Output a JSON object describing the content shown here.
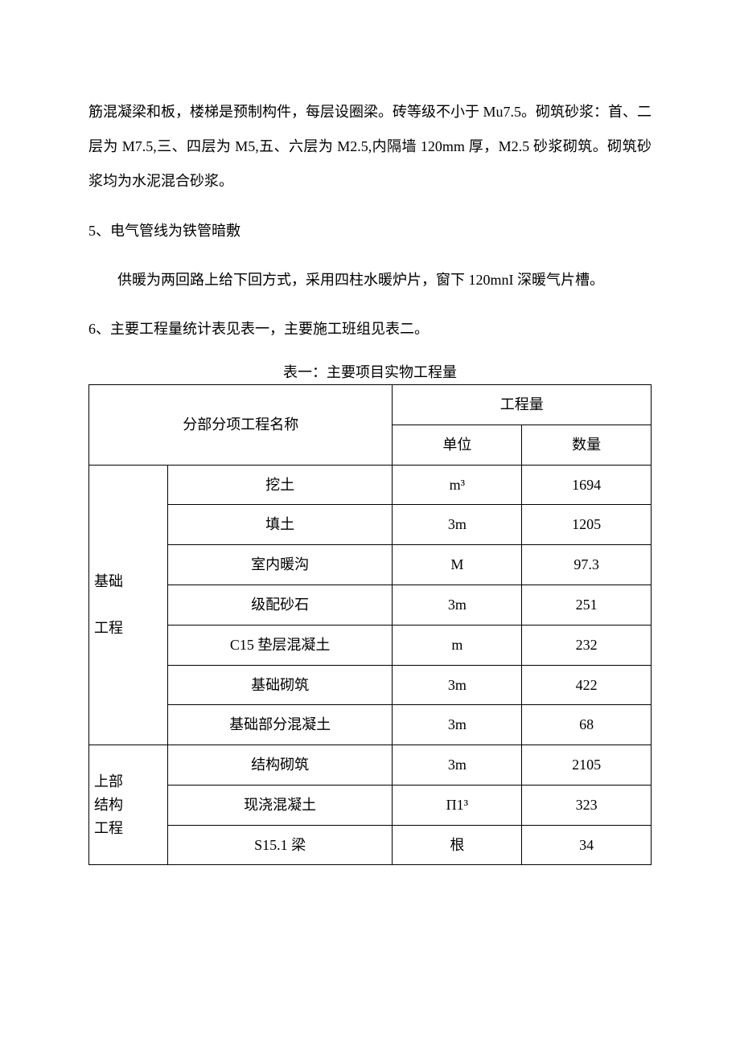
{
  "paragraphs": {
    "p1": "筋混凝梁和板，楼梯是预制构件，每层设圈梁。砖等级不小于 Mu7.5。砌筑砂浆：首、二层为 M7.5,三、四层为 M5,五、六层为 M2.5,内隔墙 120mm 厚，M2.5 砂浆砌筑。砌筑砂浆均为水泥混合砂浆。",
    "p2_title": "5、电气管线为铁管暗敷",
    "p2_body": "供暖为两回路上给下回方式，采用四柱水暖炉片，窗下 120mnI 深暖气片槽。",
    "p3": "6、主要工程量统计表见表一，主要施工班组见表二。"
  },
  "table": {
    "caption": "表一：主要项目实物工程量",
    "header": {
      "col_name": "分部分项工程名称",
      "col_qty": "工程量",
      "col_unit": "单位",
      "col_amount": "数量"
    },
    "sections": [
      {
        "label_lines": [
          "基础",
          "工程"
        ],
        "rows": [
          {
            "item": "挖土",
            "unit": "m³",
            "amount": "1694"
          },
          {
            "item": "填土",
            "unit": "3m",
            "amount": "1205"
          },
          {
            "item": "室内暖沟",
            "unit": "M",
            "amount": "97.3"
          },
          {
            "item": "级配砂石",
            "unit": "3m",
            "amount": "251"
          },
          {
            "item": "C15 垫层混凝土",
            "unit": "m",
            "amount": "232"
          },
          {
            "item": "基础砌筑",
            "unit": "3m",
            "amount": "422"
          },
          {
            "item": "基础部分混凝土",
            "unit": "3m",
            "amount": "68"
          }
        ]
      },
      {
        "label_lines": [
          "上部",
          "结构",
          "工程"
        ],
        "rows": [
          {
            "item": "结构砌筑",
            "unit": "3m",
            "amount": "2105"
          },
          {
            "item": "现浇混凝土",
            "unit": "Π1³",
            "amount": "323"
          },
          {
            "item": "S15.1 梁",
            "unit": "根",
            "amount": "34"
          }
        ]
      }
    ]
  },
  "style": {
    "text_color": "#000000",
    "background_color": "#ffffff",
    "border_color": "#000000",
    "body_fontsize_pt": 14,
    "line_height": 2.4
  }
}
